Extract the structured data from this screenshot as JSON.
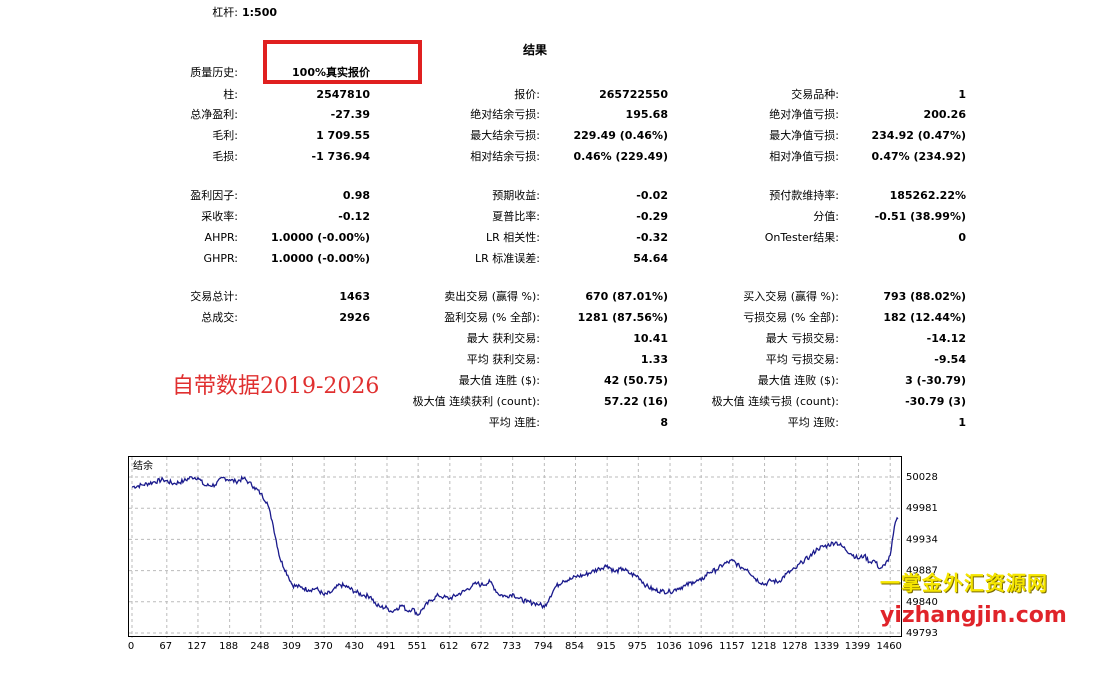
{
  "leverage": {
    "label": "杠杆:",
    "value": "1:500"
  },
  "results_title": "结果",
  "quality": {
    "label": "质量历史:",
    "value": "100%真实报价"
  },
  "rows": [
    {
      "label": "柱:",
      "value": "2547810"
    },
    {
      "label": "总净盈利:",
      "value": "-27.39"
    },
    {
      "label": "毛利:",
      "value": "1 709.55"
    },
    {
      "label": "毛损:",
      "value": "-1 736.94"
    },
    {
      "label": "盈利因子:",
      "value": "0.98"
    },
    {
      "label": "采收率:",
      "value": "-0.12"
    },
    {
      "label": "AHPR:",
      "value": "1.0000 (-0.00%)"
    },
    {
      "label": "GHPR:",
      "value": "1.0000 (-0.00%)"
    },
    {
      "label": "交易总计:",
      "value": "1463"
    },
    {
      "label": "总成交:",
      "value": "2926"
    }
  ],
  "col2": [
    {
      "label": "报价:",
      "value": "265722550"
    },
    {
      "label": "绝对结余亏损:",
      "value": "195.68"
    },
    {
      "label": "最大结余亏损:",
      "value": "229.49 (0.46%)"
    },
    {
      "label": "相对结余亏损:",
      "value": "0.46% (229.49)"
    },
    {
      "label": "预期收益:",
      "value": "-0.02"
    },
    {
      "label": "夏普比率:",
      "value": "-0.29"
    },
    {
      "label": "LR 相关性:",
      "value": "-0.32"
    },
    {
      "label": "LR 标准误差:",
      "value": "54.64"
    },
    {
      "label": "卖出交易 (赢得 %):",
      "value": "670 (87.01%)"
    },
    {
      "label": "盈利交易 (% 全部):",
      "value": "1281 (87.56%)"
    },
    {
      "label": "最大 获利交易:",
      "value": "10.41"
    },
    {
      "label": "平均 获利交易:",
      "value": "1.33"
    },
    {
      "label": "最大值 连胜 ($):",
      "value": "42 (50.75)"
    },
    {
      "label": "极大值 连续获利 (count):",
      "value": "57.22 (16)"
    },
    {
      "label": "平均 连胜:",
      "value": "8"
    }
  ],
  "col3": [
    {
      "label": "交易品种:",
      "value": "1"
    },
    {
      "label": "绝对净值亏损:",
      "value": "200.26"
    },
    {
      "label": "最大净值亏损:",
      "value": "234.92 (0.47%)"
    },
    {
      "label": "相对净值亏损:",
      "value": "0.47% (234.92)"
    },
    {
      "label": "预付款维持率:",
      "value": "185262.22%"
    },
    {
      "label": "分值:",
      "value": "-0.51 (38.99%)"
    },
    {
      "label": "OnTester结果:",
      "value": "0"
    },
    {
      "label": "买入交易 (赢得 %):",
      "value": "793 (88.02%)"
    },
    {
      "label": "亏损交易 (% 全部):",
      "value": "182 (12.44%)"
    },
    {
      "label": "最大 亏损交易:",
      "value": "-14.12"
    },
    {
      "label": "平均 亏损交易:",
      "value": "-9.54"
    },
    {
      "label": "最大值 连败 ($):",
      "value": "3 (-30.79)"
    },
    {
      "label": "极大值 连续亏损 (count):",
      "value": "-30.79 (3)"
    },
    {
      "label": "平均 连败:",
      "value": "1"
    }
  ],
  "annotation": "自带数据2019-2026",
  "watermark": {
    "line1": "一掌金外汇资源网",
    "line2": "yizhangjin.com"
  },
  "chart_data": {
    "type": "line",
    "title": "结余",
    "x_ticks": [
      "0",
      "67",
      "127",
      "188",
      "248",
      "309",
      "370",
      "430",
      "491",
      "551",
      "612",
      "672",
      "733",
      "794",
      "854",
      "915",
      "975",
      "1036",
      "1096",
      "1157",
      "1218",
      "1278",
      "1339",
      "1399",
      "1460"
    ],
    "y_ticks": [
      "50028",
      "49981",
      "49934",
      "49887",
      "49840",
      "49793"
    ],
    "ylim": [
      49793,
      50028
    ],
    "xlim": [
      0,
      1475
    ],
    "line_color": "#1a1a8c",
    "series": [
      {
        "x": [
          0,
          20,
          40,
          60,
          80,
          100,
          115,
          127,
          140,
          160,
          175,
          188,
          200,
          215,
          225,
          235,
          248,
          260,
          270,
          285,
          300,
          309,
          325,
          340,
          355,
          370,
          385,
          400,
          415,
          430,
          445,
          460,
          470,
          480,
          491,
          500,
          510,
          520,
          530,
          540,
          551,
          560,
          575,
          590,
          600,
          612,
          625,
          640,
          655,
          665,
          672,
          690,
          705,
          720,
          733,
          745,
          760,
          775,
          785,
          794,
          805,
          815,
          830,
          845,
          854,
          870,
          885,
          900,
          915,
          930,
          945,
          960,
          975,
          990,
          1005,
          1020,
          1036,
          1050,
          1065,
          1080,
          1096,
          1110,
          1125,
          1140,
          1157,
          1170,
          1185,
          1200,
          1218,
          1230,
          1245,
          1260,
          1278,
          1290,
          1305,
          1320,
          1339,
          1355,
          1370,
          1385,
          1399,
          1410,
          1420,
          1430,
          1440,
          1450,
          1460,
          1470,
          1475
        ],
        "values": [
          50013,
          50016,
          50020,
          50024,
          50018,
          50022,
          50028,
          50027,
          50015,
          50016,
          50027,
          50024,
          50021,
          50026,
          50020,
          50013,
          50003,
          49990,
          49962,
          49905,
          49880,
          49865,
          49862,
          49858,
          49860,
          49850,
          49855,
          49866,
          49862,
          49855,
          49850,
          49848,
          49835,
          49832,
          49831,
          49825,
          49830,
          49835,
          49826,
          49830,
          49820,
          49830,
          49842,
          49850,
          49847,
          49845,
          49850,
          49856,
          49864,
          49868,
          49865,
          49870,
          49852,
          49848,
          49852,
          49845,
          49840,
          49838,
          49836,
          49832,
          49848,
          49862,
          49872,
          49874,
          49878,
          49880,
          49885,
          49890,
          49895,
          49885,
          49890,
          49882,
          49878,
          49864,
          49858,
          49856,
          49855,
          49860,
          49864,
          49870,
          49872,
          49884,
          49888,
          49897,
          49902,
          49893,
          49889,
          49875,
          49866,
          49872,
          49870,
          49882,
          49890,
          49900,
          49908,
          49920,
          49925,
          49930,
          49922,
          49912,
          49905,
          49910,
          49900,
          49902,
          49890,
          49895,
          49910,
          49960,
          49965
        ]
      }
    ]
  }
}
